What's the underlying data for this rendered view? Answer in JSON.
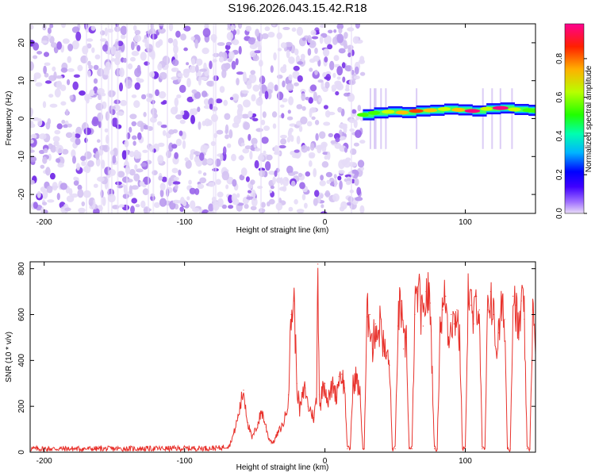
{
  "title": "S196.2026.043.15.42.R18",
  "chart_data": [
    {
      "type": "heatmap",
      "id": "spectrogram",
      "xlabel": "Height of straight line (km)",
      "ylabel": "Frequency (Hz)",
      "xlim": [
        -210,
        150
      ],
      "ylim": [
        -25,
        25
      ],
      "xticks": [
        -200,
        -100,
        0,
        100
      ],
      "xtick_labels": [
        "-200",
        "-100",
        "0",
        "100"
      ],
      "yticks": [
        -20,
        -10,
        0,
        10,
        20
      ],
      "ytick_labels": [
        "-20",
        "-10",
        "0",
        "10",
        "20"
      ],
      "noise_region": {
        "x_from": -210,
        "x_to": 27,
        "description": "broadband purple noise"
      },
      "signal_track": {
        "x_from": 27,
        "x_to": 150,
        "x": [
          27,
          35,
          45,
          55,
          65,
          75,
          85,
          95,
          105,
          115,
          125,
          135,
          145,
          150
        ],
        "freq": [
          1.0,
          1.5,
          1.8,
          1.6,
          2.0,
          2.2,
          2.5,
          2.3,
          2.0,
          2.6,
          2.8,
          2.4,
          2.2,
          2.0
        ],
        "amplitude": [
          0.55,
          0.6,
          0.7,
          0.75,
          0.85,
          0.8,
          0.7,
          0.75,
          0.95,
          0.65,
          1.0,
          0.7,
          0.6,
          0.55
        ]
      },
      "colorbar": {
        "label": "Normalized spectral amplitude",
        "range": [
          0,
          0.98
        ],
        "ticks": [
          0.0,
          0.2,
          0.4,
          0.6,
          0.8
        ],
        "tick_labels": [
          "0.0",
          "0.2",
          "0.4",
          "0.6",
          "0.8"
        ],
        "colors": [
          "#d6c4f2",
          "#8040ff",
          "#0000ff",
          "#00c8ff",
          "#00ff80",
          "#40ff00",
          "#c8ff00",
          "#ffc000",
          "#ff4000",
          "#ff0080"
        ]
      }
    },
    {
      "type": "line",
      "id": "snr",
      "xlabel": "Height of straight line (km)",
      "ylabel": "SNR (10 * v/v)",
      "xlim": [
        -210,
        150
      ],
      "ylim": [
        0,
        830
      ],
      "xticks": [
        -200,
        -100,
        0,
        100
      ],
      "xtick_labels": [
        "-200",
        "-100",
        "0",
        "100"
      ],
      "yticks": [
        0,
        200,
        400,
        600,
        800
      ],
      "ytick_labels": [
        "0",
        "200",
        "400",
        "600",
        "800"
      ],
      "color": "#e8322c",
      "series": [
        {
          "name": "SNR",
          "x": [
            -210,
            -180,
            -150,
            -110,
            -75,
            -68,
            -65,
            -62,
            -58,
            -55,
            -52,
            -48,
            -45,
            -42,
            -40,
            -37,
            -33,
            -30,
            -28,
            -26,
            -24,
            -22,
            -20,
            -18,
            -16,
            -14,
            -12,
            -10,
            -8,
            -6,
            -5,
            -4,
            -3,
            -2,
            0,
            2,
            4,
            6,
            8,
            10,
            12,
            14,
            16,
            18,
            20,
            22,
            25,
            27,
            28,
            30,
            32,
            34,
            36,
            38,
            40,
            42,
            44,
            46,
            48,
            50,
            52,
            54,
            56,
            58,
            60,
            62,
            64,
            66,
            68,
            70,
            72,
            75,
            78,
            80,
            82,
            84,
            86,
            88,
            90,
            92,
            94,
            96,
            98,
            100,
            102,
            104,
            106,
            108,
            110,
            112,
            114,
            116,
            118,
            120,
            122,
            124,
            126,
            128,
            130,
            132,
            134,
            136,
            138,
            140,
            142,
            144,
            146,
            148,
            150
          ],
          "y": [
            15,
            15,
            15,
            16,
            18,
            30,
            80,
            150,
            270,
            130,
            60,
            120,
            180,
            110,
            60,
            40,
            90,
            120,
            160,
            250,
            600,
            660,
            300,
            180,
            240,
            280,
            200,
            180,
            150,
            230,
            820,
            250,
            200,
            280,
            300,
            220,
            260,
            300,
            240,
            330,
            340,
            280,
            15,
            15,
            290,
            330,
            250,
            15,
            15,
            590,
            600,
            450,
            560,
            520,
            580,
            440,
            420,
            380,
            15,
            15,
            550,
            660,
            450,
            500,
            15,
            15,
            600,
            700,
            640,
            550,
            700,
            650,
            15,
            15,
            560,
            620,
            680,
            500,
            600,
            560,
            620,
            480,
            15,
            15,
            700,
            640,
            560,
            680,
            620,
            15,
            15,
            620,
            700,
            600,
            450,
            520,
            620,
            580,
            15,
            15,
            680,
            640,
            500,
            660,
            580,
            15,
            15,
            620,
            430
          ]
        }
      ]
    }
  ]
}
